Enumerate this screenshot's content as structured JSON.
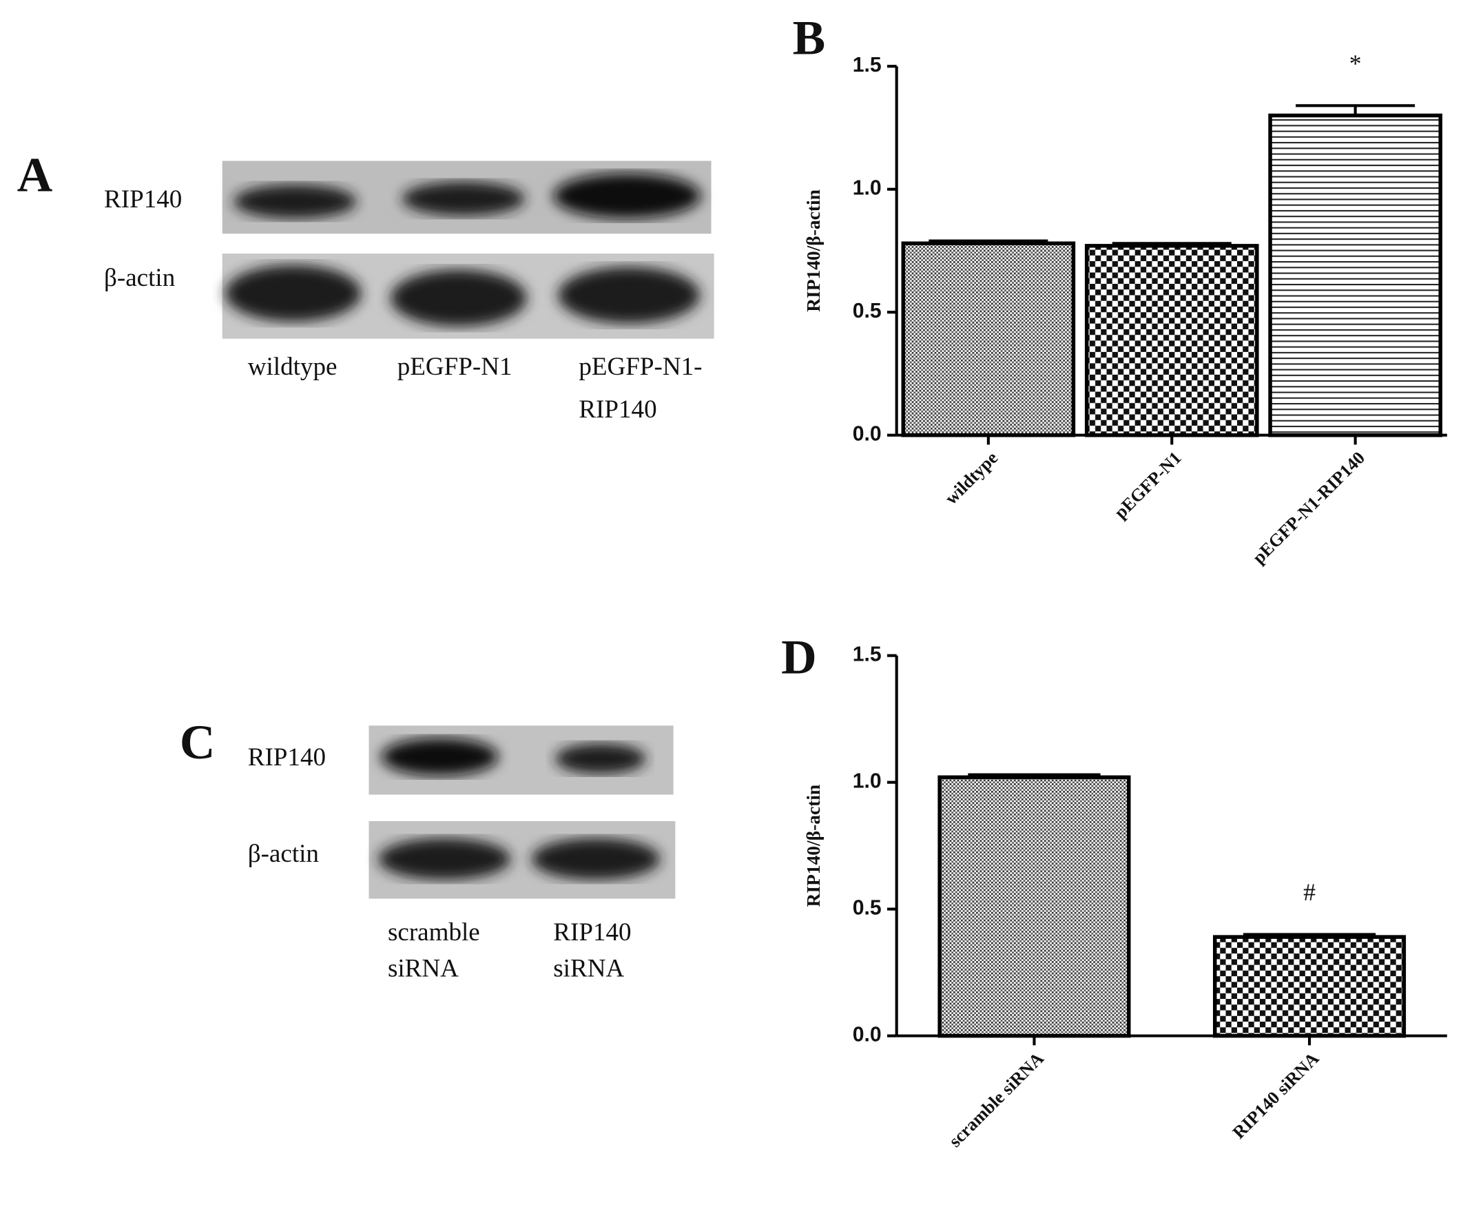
{
  "panels": {
    "a": "A",
    "b": "B",
    "c": "C",
    "d": "D"
  },
  "blots": [
    {
      "rows": [
        "RIP140",
        "β-actin"
      ],
      "lanes": [
        [
          "wildtype"
        ],
        [
          "pEGFP-N1"
        ],
        [
          "pEGFP-N1-",
          "RIP140"
        ]
      ]
    },
    {
      "rows": [
        "RIP140",
        "β-actin"
      ],
      "lanes": [
        [
          "scramble",
          "siRNA"
        ],
        [
          "RIP140",
          "siRNA"
        ]
      ]
    }
  ],
  "chart_data": [
    {
      "type": "bar",
      "ylabel": "RIP140/β-actin",
      "categories": [
        "wildtype",
        "pEGFP-N1",
        "pEGFP-N1-RIP140"
      ],
      "values": [
        0.78,
        0.77,
        1.3
      ],
      "errors": [
        0.01,
        0.01,
        0.04
      ],
      "value_annotations": [
        null,
        null,
        "*"
      ],
      "patterns": [
        "crosshatch",
        "checker",
        "horizontal"
      ],
      "ylim": [
        0,
        1.5
      ],
      "yticks": [
        {
          "value": 0,
          "label": "0.0"
        },
        0.5,
        {
          "value": 1,
          "label": "1.0"
        },
        1.5
      ]
    },
    {
      "type": "bar",
      "ylabel": "RIP140/β-actin",
      "categories": [
        "scramble siRNA",
        "RIP140 siRNA"
      ],
      "values": [
        1.02,
        0.39
      ],
      "errors": [
        0.01,
        0.01
      ],
      "value_annotations": [
        null,
        "#"
      ],
      "patterns": [
        "crosshatch",
        "checker"
      ],
      "ylim": [
        0,
        1.5
      ],
      "yticks": [
        {
          "value": 0,
          "label": "0.0"
        },
        0.5,
        {
          "value": 1,
          "label": "1.0"
        },
        1.5
      ]
    }
  ]
}
